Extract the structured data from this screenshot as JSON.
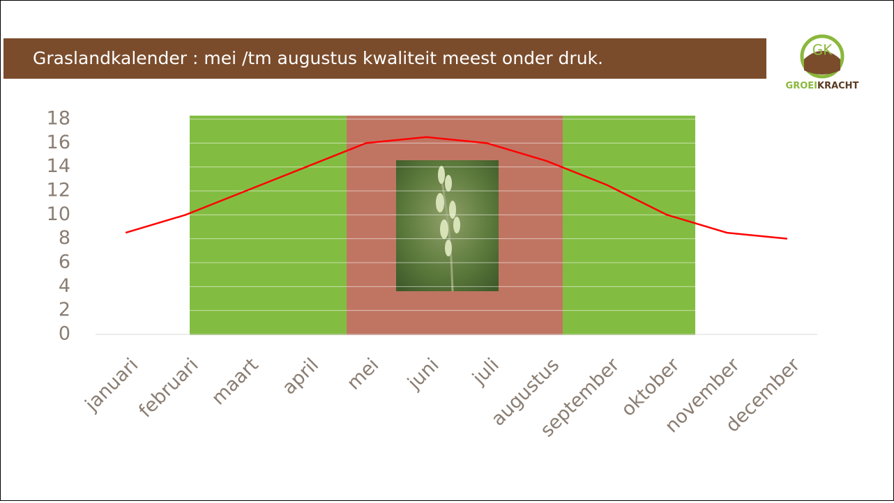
{
  "header": {
    "title": "Graslandkalender : mei /tm augustus kwaliteit meest onder druk.",
    "logo_mark": "GK",
    "logo_text_1": "GROEI",
    "logo_text_2": "KRACHT"
  },
  "chart_data": {
    "type": "line",
    "categories": [
      "januari",
      "februari",
      "maart",
      "april",
      "mei",
      "juni",
      "juli",
      "augustus",
      "september",
      "oktober",
      "november",
      "december"
    ],
    "series": [
      {
        "name": "kwaliteit",
        "color": "#ff0000",
        "values": [
          8.5,
          10,
          12,
          14,
          16,
          16.5,
          16,
          14.5,
          12.5,
          10,
          8.5,
          8
        ]
      }
    ],
    "ylim": [
      0,
      18
    ],
    "yticks": [
      0,
      2,
      4,
      6,
      8,
      10,
      12,
      14,
      16,
      18
    ],
    "grid": true
  }
}
